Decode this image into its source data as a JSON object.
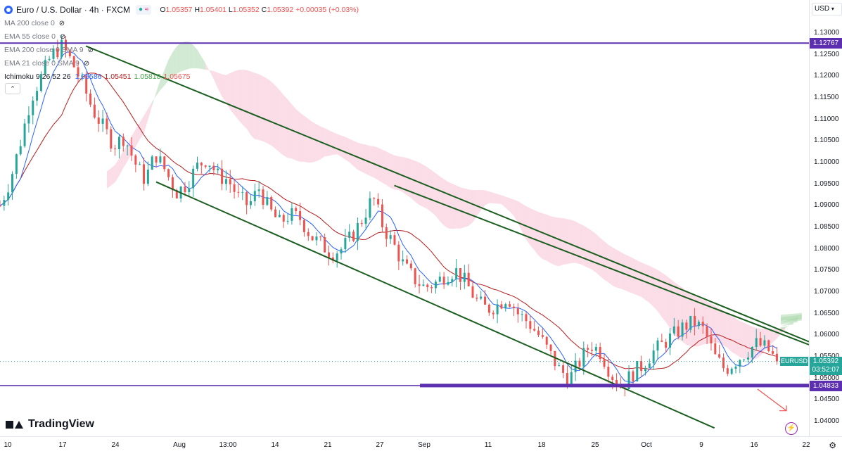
{
  "header": {
    "symbol_title": "Euro / U.S. Dollar · 4h · FXCM",
    "badge_text": "≈",
    "ohlc": {
      "open_label": "O",
      "open": "1.05357",
      "high_label": "H",
      "high": "1.05401",
      "low_label": "L",
      "low": "1.05352",
      "close_label": "C",
      "close": "1.05392",
      "change": "+0.00035 (+0.03%)"
    }
  },
  "indicators": [
    {
      "label": "MA 200 close 0"
    },
    {
      "label": "EMA 55 close 0"
    },
    {
      "label": "EMA 200 close 0 SMA 9"
    },
    {
      "label": "EMA 21 close 0 SMA 9"
    }
  ],
  "ichimoku": {
    "label": "Ichimoku 9 26 52 26",
    "v1": "1.05586",
    "v2": "1.05451",
    "v3": "1.05818",
    "v4": "1.05675",
    "colors": {
      "v1": "#2962ff",
      "v2": "#b71c1c",
      "v3": "#43a047",
      "v4": "#ef5350"
    }
  },
  "price_axis": {
    "currency": "USD",
    "ticks": [
      "1.13000",
      "1.12500",
      "1.12000",
      "1.11500",
      "1.11000",
      "1.10500",
      "1.10000",
      "1.09500",
      "1.09000",
      "1.08500",
      "1.08000",
      "1.07500",
      "1.07000",
      "1.06500",
      "1.06000",
      "1.05500",
      "1.05000",
      "1.04500",
      "1.04000"
    ],
    "level_top": "1.12767",
    "level_bottom": "1.04833",
    "symbol_tag": "EURUSD",
    "current_price": "1.05392",
    "countdown": "03:52:07"
  },
  "time_axis": {
    "labels": [
      "10",
      "17",
      "24",
      "Aug",
      "13:00",
      "14",
      "21",
      "27",
      "Sep",
      "11",
      "18",
      "25",
      "Oct",
      "9",
      "16",
      "22"
    ]
  },
  "branding": {
    "logo_text": "TradingView"
  },
  "colors": {
    "up": "#26a69a",
    "down": "#ef5350",
    "level": "#5b2fb0",
    "channel": "#1b5e20",
    "tenkan": "#2962ff",
    "kijun": "#b71c1c",
    "cloud_bull": "#a5d6a7",
    "cloud_bear": "#f8bbd0"
  },
  "chart_data": {
    "type": "candlestick",
    "title": "Euro / U.S. Dollar · 4h · FXCM",
    "price_range": [
      1.037,
      1.133
    ],
    "x_start": "10",
    "x_end": "22",
    "horizontal_levels": [
      1.12767,
      1.04833
    ],
    "channel": {
      "upper": [
        [
          0.11,
          1.127
        ],
        [
          1.0,
          1.0585
        ]
      ],
      "lower": [
        [
          0.2,
          1.0955
        ],
        [
          0.915,
          1.0385
        ]
      ],
      "inner": [
        [
          0.505,
          1.0947
        ],
        [
          1.0,
          1.0578
        ]
      ]
    },
    "close_path": [
      1.09,
      1.096,
      1.105,
      1.115,
      1.12,
      1.125,
      1.127,
      1.123,
      1.118,
      1.112,
      1.108,
      1.104,
      1.106,
      1.1,
      1.096,
      1.102,
      1.098,
      1.093,
      1.095,
      1.099,
      1.101,
      1.097,
      1.096,
      1.092,
      1.09,
      1.094,
      1.089,
      1.086,
      1.088,
      1.087,
      1.083,
      1.081,
      1.079,
      1.08,
      1.083,
      1.087,
      1.092,
      1.085,
      1.081,
      1.076,
      1.073,
      1.071,
      1.072,
      1.074,
      1.075,
      1.072,
      1.068,
      1.066,
      1.067,
      1.069,
      1.065,
      1.063,
      1.06,
      1.056,
      1.052,
      1.05,
      1.054,
      1.058,
      1.056,
      1.051,
      1.048,
      1.051,
      1.053,
      1.056,
      1.058,
      1.06,
      1.062,
      1.063,
      1.061,
      1.055,
      1.052,
      1.054,
      1.056,
      1.058,
      1.057,
      1.05392
    ],
    "last_close": 1.05392
  }
}
